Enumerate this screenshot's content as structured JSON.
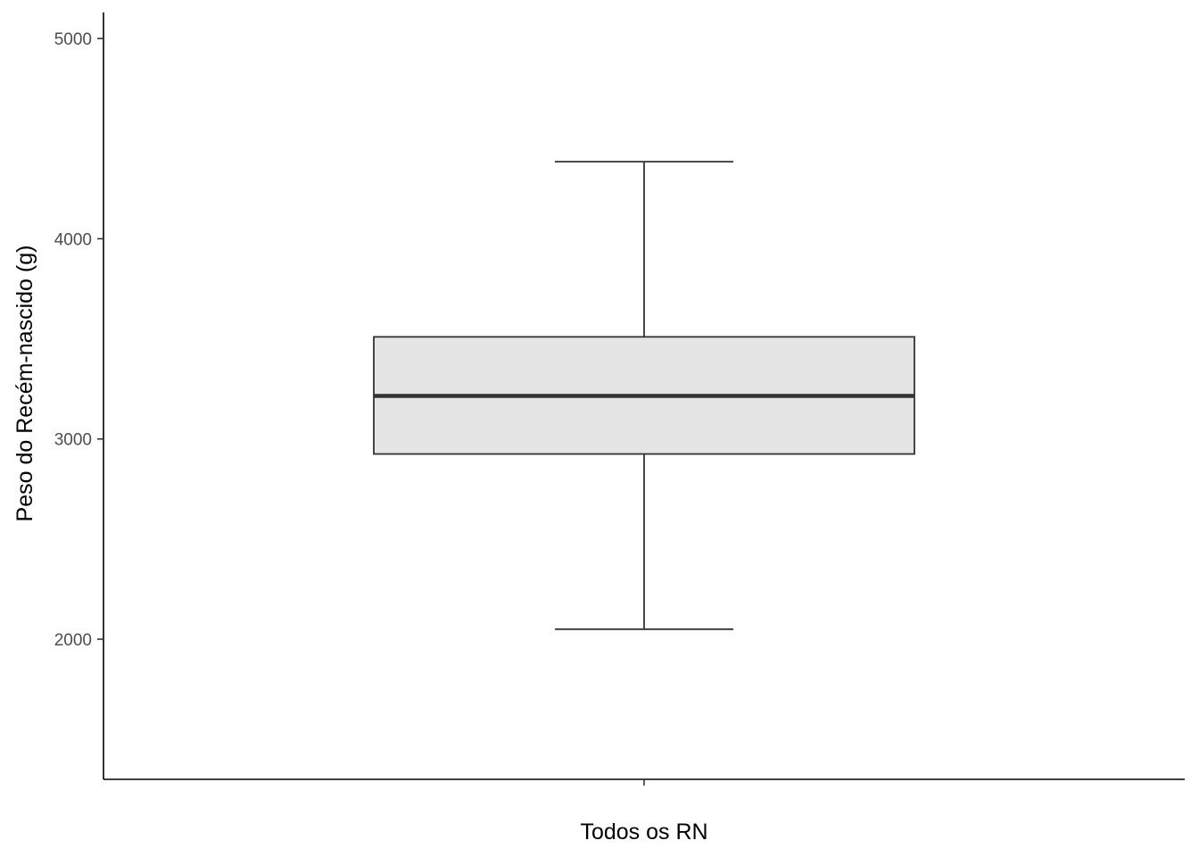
{
  "chart_data": {
    "type": "boxplot",
    "title": "",
    "xlabel": "",
    "ylabel": "Peso do Recém-nascido (g)",
    "categories": [
      "Todos os RN"
    ],
    "boxes": [
      {
        "category": "Todos os RN",
        "whisker_low": 2050,
        "q1": 2925,
        "median": 3215,
        "q3": 3510,
        "whisker_high": 4385
      }
    ],
    "ylim": [
      1300,
      5130
    ],
    "y_ticks": [
      2000,
      3000,
      4000,
      5000
    ],
    "y_tick_labels": [
      "2000",
      "3000",
      "4000",
      "5000"
    ],
    "grid": false,
    "legend": "none",
    "colors": {
      "box_fill": "#e5e5e5",
      "box_stroke": "#333333",
      "axis": "#000000",
      "tick_text": "#4d4d4d"
    }
  }
}
